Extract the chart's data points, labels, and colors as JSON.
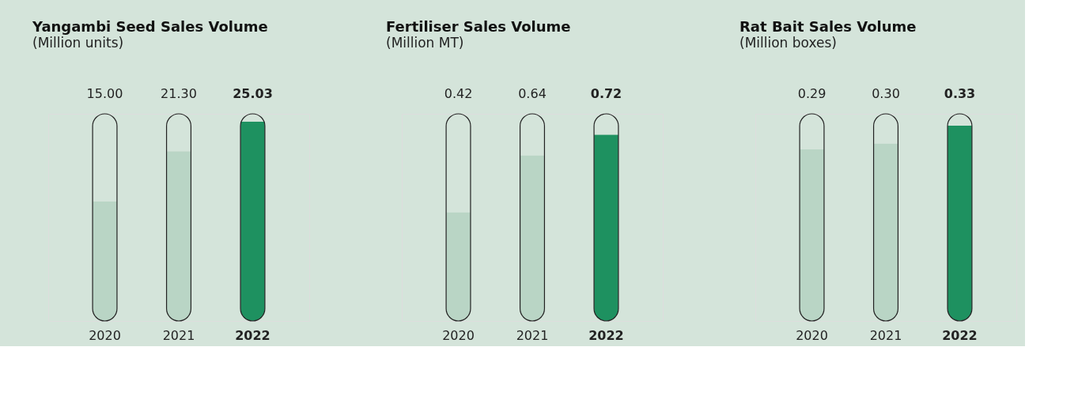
{
  "chart_data": [
    {
      "type": "bar",
      "title": "Yangambi Seed Sales Volume",
      "subtitle": "(Million units)",
      "categories": [
        "2020",
        "2021",
        "2022"
      ],
      "values": [
        15.0,
        21.3,
        25.03
      ],
      "value_labels": [
        "15.00",
        "21.30",
        "25.03"
      ],
      "colors": [
        "#b9d5c5",
        "#b9d5c5",
        "#1e9160"
      ],
      "tick_labels": "x"
    },
    {
      "type": "bar",
      "title": "Fertiliser Sales Volume",
      "subtitle": "(Million MT)",
      "categories": [
        "2020",
        "2021",
        "2022"
      ],
      "values": [
        0.42,
        0.64,
        0.72
      ],
      "value_labels": [
        "0.42",
        "0.64",
        "0.72"
      ],
      "colors": [
        "#b9d5c5",
        "#b9d5c5",
        "#1e9160"
      ],
      "tick_labels": "x"
    },
    {
      "type": "bar",
      "title": "Rat Bait Sales Volume",
      "subtitle": "(Million boxes)",
      "categories": [
        "2020",
        "2021",
        "2022"
      ],
      "values": [
        0.29,
        0.3,
        0.33
      ],
      "value_labels": [
        "0.29",
        "0.30",
        "0.33"
      ],
      "colors": [
        "#b9d5c5",
        "#b9d5c5",
        "#1e9160"
      ],
      "tick_labels": "x"
    }
  ]
}
